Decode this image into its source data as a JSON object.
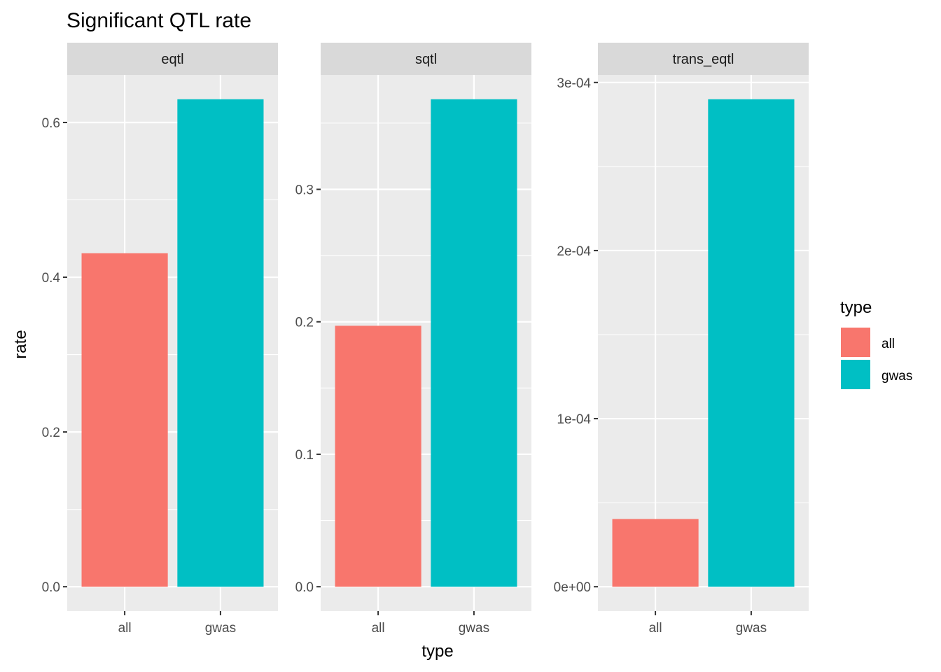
{
  "chart_data": {
    "type": "bar",
    "title": "Significant QTL rate",
    "xlabel": "type",
    "ylabel": "rate",
    "categories": [
      "all",
      "gwas"
    ],
    "facets": [
      {
        "name": "eqtl",
        "values": [
          0.431,
          0.63
        ],
        "ylim": [
          0,
          0.68
        ],
        "ticks": [
          0.0,
          0.2,
          0.4,
          0.6
        ],
        "tick_labels": [
          "0.0",
          "0.2",
          "0.4",
          "0.6"
        ]
      },
      {
        "name": "sqtl",
        "values": [
          0.197,
          0.368
        ],
        "ylim": [
          0,
          0.39
        ],
        "ticks": [
          0.0,
          0.1,
          0.2,
          0.3
        ],
        "tick_labels": [
          "0.0",
          "0.1",
          "0.2",
          "0.3"
        ]
      },
      {
        "name": "trans_eqtl",
        "values": [
          4.03e-05,
          0.00029
        ],
        "ylim": [
          0,
          0.00031
        ],
        "ticks": [
          0,
          0.0001,
          0.0002,
          0.0003
        ],
        "tick_labels": [
          "0e+00",
          "1e-04",
          "2e-04",
          "3e-04"
        ]
      }
    ],
    "legend": {
      "title": "type",
      "position": "right",
      "items": [
        {
          "label": "all",
          "color": "#F8766D"
        },
        {
          "label": "gwas",
          "color": "#00BFC4"
        }
      ]
    },
    "colors": {
      "all": "#F8766D",
      "gwas": "#00BFC4",
      "panel_background": "#EBEBEB",
      "strip_background": "#D9D9D9",
      "grid": "#FFFFFF"
    },
    "grid": true
  }
}
